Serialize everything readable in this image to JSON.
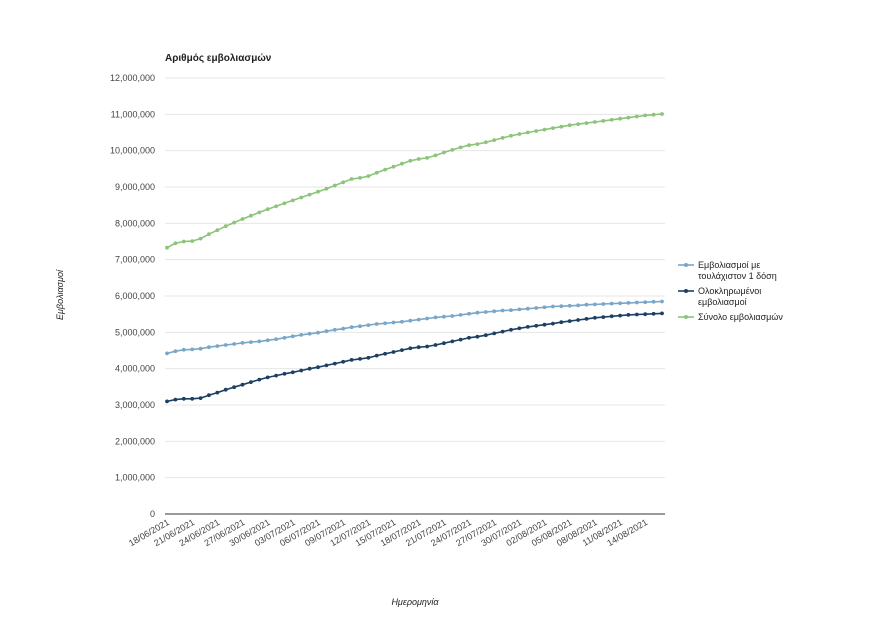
{
  "chart_data": {
    "type": "line",
    "title": "Αριθμός εμβολιασμών",
    "xlabel": "Ημερομηνία",
    "ylabel": "Εμβολιασμοί",
    "ylim": [
      0,
      12000000
    ],
    "ytick_step": 1000000,
    "y_tick_labels": [
      "0",
      "1,000,000",
      "2,000,000",
      "3,000,000",
      "4,000,000",
      "5,000,000",
      "6,000,000",
      "7,000,000",
      "8,000,000",
      "9,000,000",
      "10,000,000",
      "11,000,000",
      "12,000,000"
    ],
    "start_date": "2021-06-18",
    "num_days": 60,
    "x_tick_labels": [
      "18/06/2021",
      "21/06/2021",
      "24/06/2021",
      "27/06/2021",
      "30/06/2021",
      "03/07/2021",
      "06/07/2021",
      "09/07/2021",
      "12/07/2021",
      "15/07/2021",
      "18/07/2021",
      "21/07/2021",
      "24/07/2021",
      "27/07/2021",
      "30/07/2021",
      "02/08/2021",
      "05/08/2021",
      "08/08/2021",
      "11/08/2021",
      "14/08/2021"
    ],
    "grid": true,
    "legend_position": "right",
    "series": [
      {
        "name": "Εμβολιασμοί με τουλάχιστον 1 δόση",
        "legend_lines": [
          "Εμβολιασμοί με",
          "τουλάχιστον 1 δόση"
        ],
        "color": "#7aa6c8",
        "values": [
          4420000,
          4480000,
          4520000,
          4530000,
          4550000,
          4590000,
          4620000,
          4650000,
          4680000,
          4710000,
          4730000,
          4750000,
          4780000,
          4810000,
          4850000,
          4890000,
          4930000,
          4960000,
          4990000,
          5030000,
          5070000,
          5100000,
          5140000,
          5170000,
          5200000,
          5230000,
          5250000,
          5270000,
          5290000,
          5320000,
          5350000,
          5380000,
          5410000,
          5430000,
          5450000,
          5480000,
          5510000,
          5540000,
          5560000,
          5580000,
          5600000,
          5610000,
          5630000,
          5650000,
          5670000,
          5690000,
          5710000,
          5720000,
          5730000,
          5740000,
          5760000,
          5770000,
          5780000,
          5790000,
          5800000,
          5810000,
          5820000,
          5830000,
          5840000,
          5850000
        ]
      },
      {
        "name": "Ολοκληρωμένοι εμβολιασμοί",
        "legend_lines": [
          "Ολοκληρωμένοι",
          "εμβολιασμοί"
        ],
        "color": "#1c3f62",
        "values": [
          3100000,
          3150000,
          3170000,
          3170000,
          3190000,
          3270000,
          3340000,
          3420000,
          3490000,
          3560000,
          3630000,
          3700000,
          3760000,
          3810000,
          3860000,
          3900000,
          3950000,
          4000000,
          4040000,
          4090000,
          4140000,
          4190000,
          4240000,
          4270000,
          4300000,
          4360000,
          4410000,
          4460000,
          4510000,
          4560000,
          4590000,
          4610000,
          4650000,
          4700000,
          4750000,
          4800000,
          4850000,
          4880000,
          4920000,
          4970000,
          5020000,
          5070000,
          5110000,
          5150000,
          5180000,
          5210000,
          5240000,
          5280000,
          5310000,
          5340000,
          5370000,
          5400000,
          5420000,
          5440000,
          5460000,
          5480000,
          5490000,
          5500000,
          5510000,
          5520000
        ]
      },
      {
        "name": "Σύνολο εμβολιασμών",
        "legend_lines": [
          "Σύνολο εμβολιασμών"
        ],
        "color": "#8cc47a",
        "values": [
          7330000,
          7450000,
          7500000,
          7510000,
          7580000,
          7700000,
          7810000,
          7920000,
          8020000,
          8120000,
          8210000,
          8300000,
          8390000,
          8470000,
          8550000,
          8630000,
          8710000,
          8790000,
          8870000,
          8950000,
          9040000,
          9130000,
          9220000,
          9250000,
          9300000,
          9390000,
          9480000,
          9560000,
          9640000,
          9720000,
          9770000,
          9800000,
          9870000,
          9950000,
          10020000,
          10090000,
          10150000,
          10180000,
          10230000,
          10290000,
          10350000,
          10410000,
          10460000,
          10500000,
          10540000,
          10580000,
          10620000,
          10660000,
          10700000,
          10730000,
          10760000,
          10790000,
          10820000,
          10850000,
          10880000,
          10910000,
          10940000,
          10970000,
          10990000,
          11010000
        ]
      }
    ]
  }
}
